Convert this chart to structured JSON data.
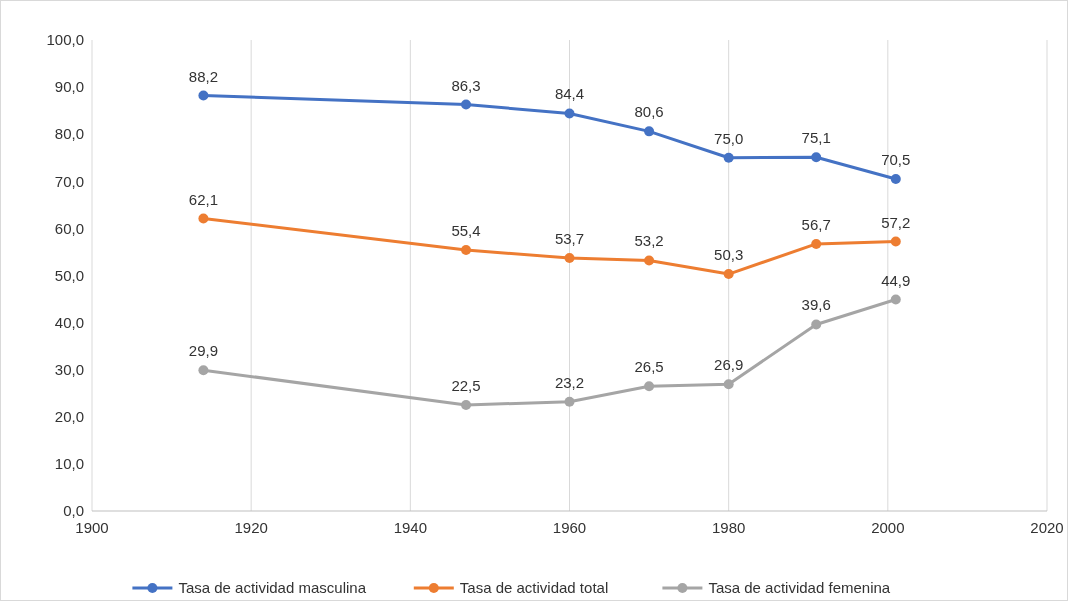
{
  "chart_data": {
    "type": "line",
    "x": [
      1914,
      1947,
      1960,
      1970,
      1980,
      1991,
      2001
    ],
    "series": [
      {
        "name": "Tasa de actividad masculina",
        "color": "#4472c4",
        "values": [
          88.2,
          86.3,
          84.4,
          80.6,
          75.0,
          75.1,
          70.5
        ],
        "value_labels": [
          "88,2",
          "86,3",
          "84,4",
          "80,6",
          "75,0",
          "75,1",
          "70,5"
        ]
      },
      {
        "name": "Tasa de actividad total",
        "color": "#ed7d31",
        "values": [
          62.1,
          55.4,
          53.7,
          53.2,
          50.3,
          56.7,
          57.2
        ],
        "value_labels": [
          "62,1",
          "55,4",
          "53,7",
          "53,2",
          "50,3",
          "56,7",
          "57,2"
        ]
      },
      {
        "name": "Tasa de actividad femenina",
        "color": "#a5a5a5",
        "values": [
          29.9,
          22.5,
          23.2,
          26.5,
          26.9,
          39.6,
          44.9
        ],
        "value_labels": [
          "29,9",
          "22,5",
          "23,2",
          "26,5",
          "26,9",
          "39,6",
          "44,9"
        ]
      }
    ],
    "xlim": [
      1900,
      2020
    ],
    "xticks": [
      1900,
      1920,
      1940,
      1960,
      1980,
      2000,
      2020
    ],
    "ylim": [
      0,
      100
    ],
    "yticks": [
      {
        "value": 0,
        "label": "0,0"
      },
      {
        "value": 10,
        "label": "10,0"
      },
      {
        "value": 20,
        "label": "20,0"
      },
      {
        "value": 30,
        "label": "30,0"
      },
      {
        "value": 40,
        "label": "40,0"
      },
      {
        "value": 50,
        "label": "50,0"
      },
      {
        "value": 60,
        "label": "60,0"
      },
      {
        "value": 70,
        "label": "70,0"
      },
      {
        "value": 80,
        "label": "80,0"
      },
      {
        "value": 90,
        "label": "90,0"
      },
      {
        "value": 100,
        "label": "100,0"
      }
    ],
    "grid": "x",
    "legend": "bottom",
    "marker": "circle",
    "line_style": "solid"
  }
}
